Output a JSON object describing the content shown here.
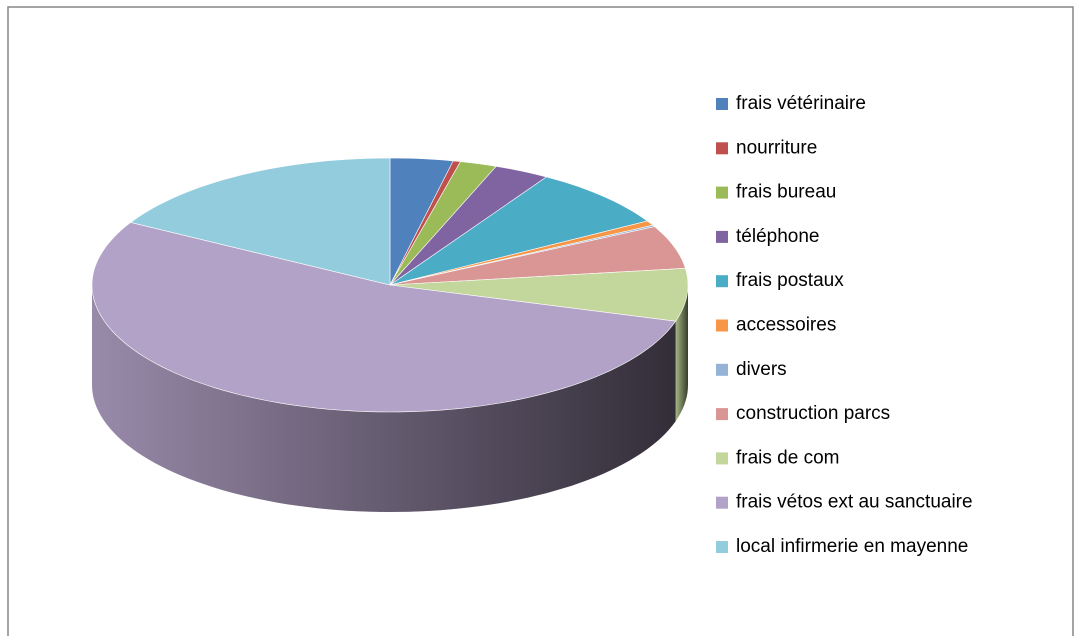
{
  "chart_data": {
    "type": "pie3d",
    "categories": [
      "frais vétérinaire",
      "nourriture",
      "frais bureau",
      "téléphone",
      "frais postaux",
      "accessoires",
      "divers",
      "construction parcs",
      "frais de com",
      "frais vétos ext au sanctuaire",
      "local infirmerie en mayenne"
    ],
    "values": [
      3.4,
      0.4,
      2,
      3,
      7.8,
      0.6,
      0.2,
      5.5,
      6.7,
      53.6,
      16.8
    ],
    "colors": [
      "#4f81bd",
      "#c0504d",
      "#9bbb59",
      "#8064a2",
      "#4bacc6",
      "#f79646",
      "#95b3d7",
      "#d99694",
      "#c3d69b",
      "#b3a2c7",
      "#93cddd"
    ],
    "legend": "right"
  }
}
